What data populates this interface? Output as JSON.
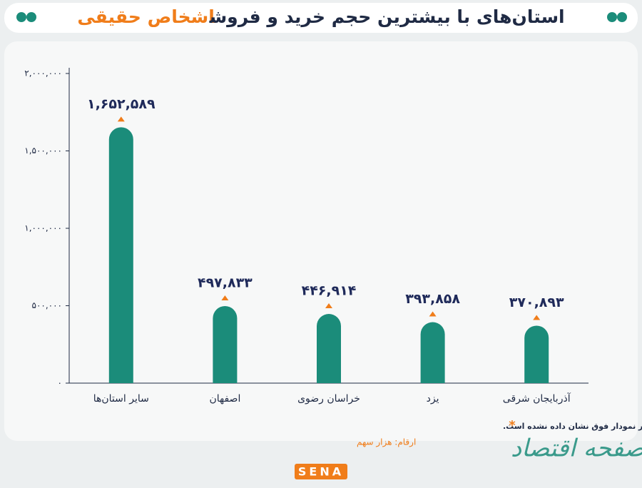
{
  "chart_data": {
    "type": "bar",
    "title": "استان‌های با بیشترین حجم خرید و فروش",
    "title_highlight": "اشخاص حقیقی",
    "categories": [
      "سایر استان‌ها",
      "اصفهان",
      "خراسان رضوی",
      "یزد",
      "آذربایجان شرقی"
    ],
    "values": [
      1652589,
      497833,
      446914,
      393858,
      370893
    ],
    "value_labels": [
      "۱,۶۵۲,۵۸۹",
      "۴۹۷,۸۳۳",
      "۴۴۶,۹۱۴",
      "۳۹۳,۸۵۸",
      "۳۷۰,۸۹۳"
    ],
    "color": "#1b8c7a",
    "ylim": [
      0,
      2000000
    ],
    "yticks": [
      {
        "value": 0,
        "label": "۰"
      },
      {
        "value": 500000,
        "label": "۵۰۰,۰۰۰"
      },
      {
        "value": 1000000,
        "label": "۱,۰۰۰,۰۰۰"
      },
      {
        "value": 1500000,
        "label": "۱,۵۰۰,۰۰۰"
      },
      {
        "value": 2000000,
        "label": "۲,۰۰۰,۰۰۰"
      }
    ],
    "footnote": "استان تهران به دلیل نسبت بالا از کل حجم معاملات، در نمودار فوق نشان داده نشده است.",
    "unit_note": "ارقام: هزار سهم",
    "watermark": "صفحه اقتصاد",
    "logo": "SENA"
  }
}
